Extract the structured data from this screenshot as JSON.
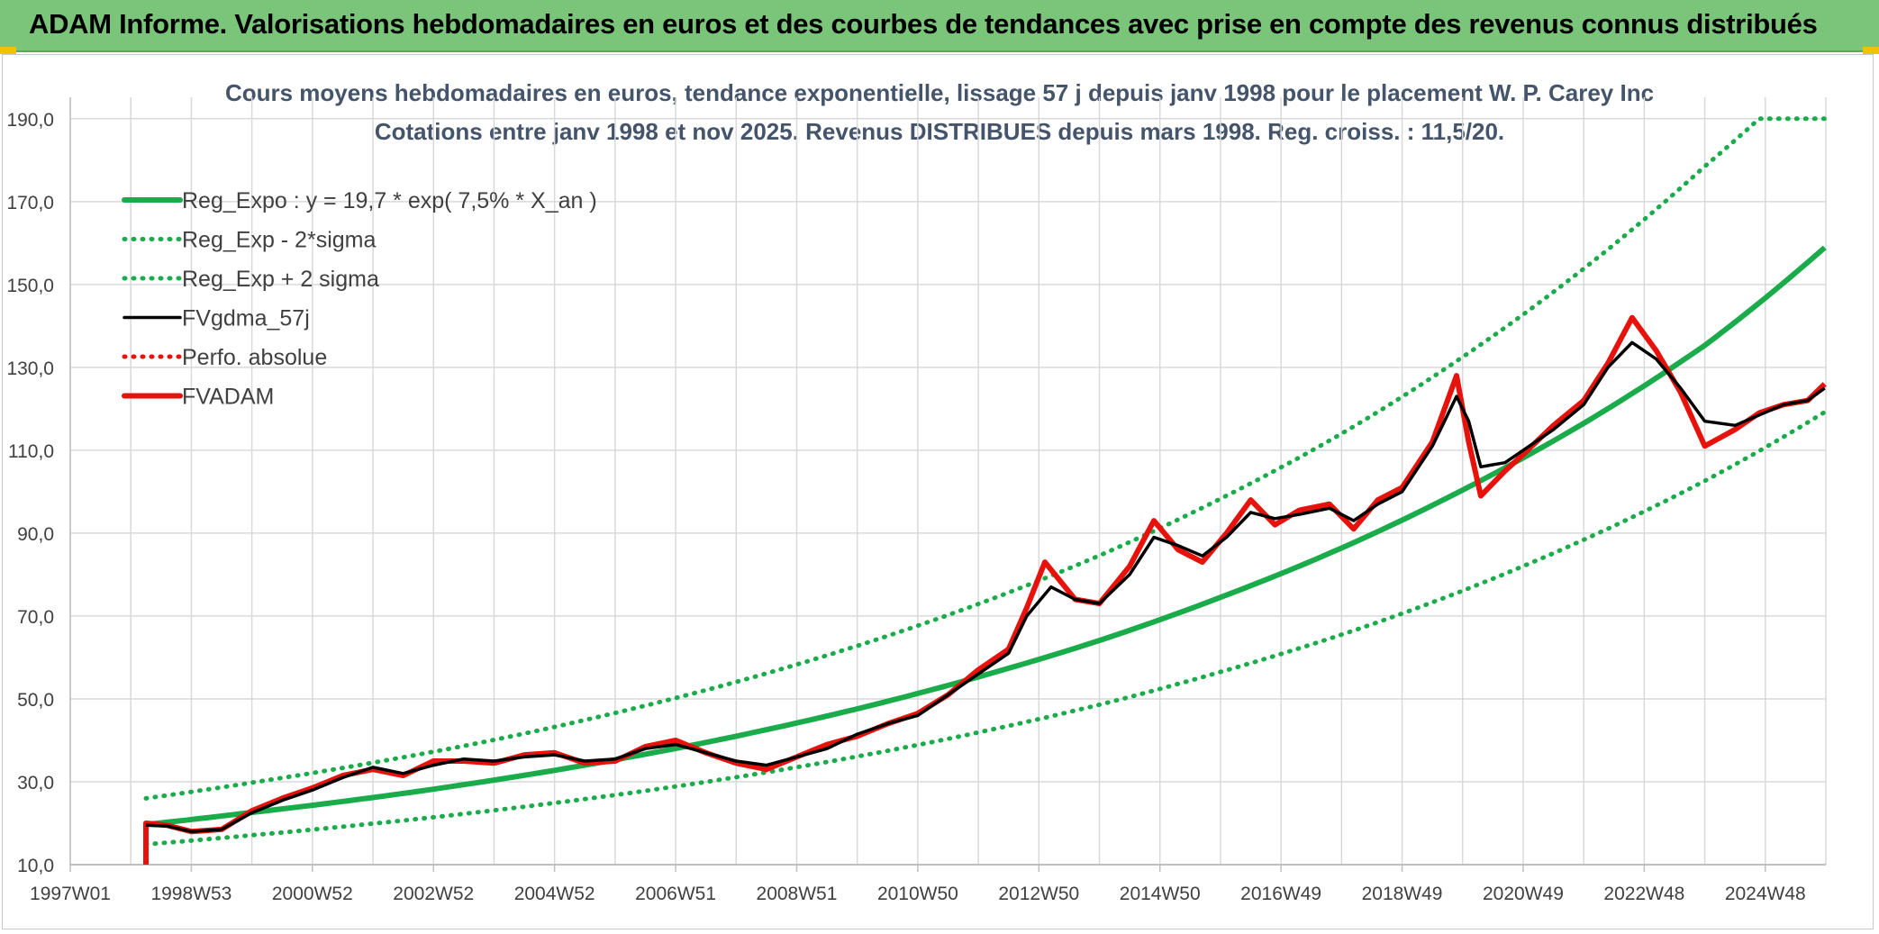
{
  "header": {
    "title": "ADAM Informe. Valorisations hebdomadaires en euros et des courbes de tendances avec prise en compte des revenus connus distribués"
  },
  "colors": {
    "header_bg": "#7ac57a",
    "regression": "#1aab4a",
    "price": "#e8120c",
    "smooth": "#000000",
    "grid": "#d9d9d9",
    "text": "#404040"
  },
  "chart_data": {
    "type": "line",
    "title": "Cours moyens hebdomadaires en euros, tendance exponentielle, lissage 57 j depuis janv 1998 pour le placement W. P. Carey Inc",
    "subtitle": "Cotations entre janv 1998 et nov 2025. Revenus DISTRIBUES depuis mars 1998. Reg. croiss. : 11,5/20.",
    "x_tick_labels": [
      "1997W01",
      "1998W53",
      "2000W52",
      "2002W52",
      "2004W52",
      "2006W51",
      "2008W51",
      "2010W50",
      "2012W50",
      "2014W50",
      "2016W49",
      "2018W49",
      "2020W49",
      "2022W48",
      "2024W48"
    ],
    "y_tick_labels": [
      "10,0",
      "30,0",
      "50,0",
      "70,0",
      "90,0",
      "110,0",
      "130,0",
      "150,0",
      "170,0",
      "190,0"
    ],
    "ylim": [
      10,
      193
    ],
    "xlim": [
      1997.0,
      2026.0
    ],
    "grid": true,
    "legend_placement": "top-left",
    "regression_formula": "Reg_Expo : y = 19,7 * exp( 7,5% *  X_an )",
    "series": [
      {
        "name": "Reg_Expo : y = 19,7 * exp( 7,5% *  X_an )",
        "style": "solid-thick",
        "color": "#1aab4a",
        "x": [
          1998.25,
          2000.0,
          2002.0,
          2004.0,
          2006.0,
          2008.0,
          2010.0,
          2012.0,
          2014.0,
          2016.0,
          2018.0,
          2020.0,
          2022.0,
          2024.0,
          2025.98
        ],
        "y": [
          19.7,
          22.6,
          26.2,
          30.4,
          35.3,
          41.0,
          47.6,
          55.3,
          64.1,
          74.5,
          86.4,
          100.4,
          116.5,
          135.3,
          158.9
        ]
      },
      {
        "name": "Reg_Exp - 2*sigma",
        "style": "dotted",
        "color": "#1aab4a",
        "x": [
          1998.25,
          2000.0,
          2002.0,
          2004.0,
          2006.0,
          2008.0,
          2010.0,
          2012.0,
          2014.0,
          2016.0,
          2018.0,
          2020.0,
          2022.0,
          2024.0,
          2025.98
        ],
        "y": [
          14.9,
          17.1,
          19.9,
          23.1,
          26.8,
          31.1,
          36.1,
          41.9,
          48.6,
          56.5,
          65.5,
          76.1,
          88.4,
          102.6,
          119.2
        ]
      },
      {
        "name": "Reg_Exp + 2 sigma",
        "style": "dotted",
        "color": "#1aab4a",
        "x": [
          1998.25,
          2000.0,
          2002.0,
          2004.0,
          2006.0,
          2008.0,
          2010.0,
          2012.0,
          2014.0,
          2016.0,
          2018.0,
          2020.0,
          2022.0,
          2024.0,
          2024.9,
          2025.98
        ],
        "y": [
          26.0,
          29.8,
          34.6,
          40.1,
          46.6,
          54.1,
          62.8,
          72.9,
          84.6,
          98.3,
          114.0,
          132.5,
          153.8,
          178.5,
          190.0,
          190.0
        ]
      },
      {
        "name": "FVgdma_57j",
        "style": "solid",
        "color": "#000000",
        "x": [
          1998.25,
          1998.6,
          1999.0,
          1999.5,
          2000.0,
          2000.5,
          2001.0,
          2001.5,
          2002.0,
          2002.5,
          2003.0,
          2003.5,
          2004.0,
          2004.5,
          2005.0,
          2005.5,
          2006.0,
          2006.5,
          2007.0,
          2007.5,
          2008.0,
          2008.5,
          2009.0,
          2009.5,
          2010.0,
          2010.5,
          2011.0,
          2011.5,
          2012.0,
          2012.5,
          2012.8,
          2013.2,
          2013.6,
          2014.0,
          2014.5,
          2014.9,
          2015.3,
          2015.7,
          2016.1,
          2016.5,
          2016.9,
          2017.3,
          2017.8,
          2018.2,
          2018.6,
          2019.0,
          2019.5,
          2019.9,
          2020.1,
          2020.3,
          2020.7,
          2021.0,
          2021.5,
          2022.0,
          2022.4,
          2022.8,
          2023.2,
          2023.6,
          2024.0,
          2024.5,
          2024.9,
          2025.3,
          2025.7,
          2025.98
        ],
        "y": [
          19.5,
          19.3,
          18.0,
          18.5,
          22.5,
          25.5,
          28.0,
          31.0,
          33.5,
          32.0,
          34.0,
          35.5,
          35.0,
          36.0,
          36.5,
          35.0,
          35.5,
          38.0,
          39.0,
          37.0,
          35.0,
          34.0,
          36.0,
          38.0,
          41.5,
          44.0,
          46.0,
          51.0,
          56.0,
          61.0,
          70.0,
          77.0,
          74.0,
          73.0,
          80.0,
          89.0,
          87.0,
          84.5,
          89.0,
          95.0,
          93.5,
          94.5,
          96.0,
          93.0,
          97.0,
          100.0,
          111.0,
          123.0,
          117.0,
          106.0,
          107.0,
          110.0,
          115.0,
          121.0,
          130.0,
          136.0,
          132.0,
          125.0,
          117.0,
          116.0,
          118.5,
          121.0,
          122.0,
          125.0
        ]
      },
      {
        "name": "Perfo. absolue",
        "style": "dotted",
        "color": "#e8120c",
        "x": [],
        "y": []
      },
      {
        "name": "FVADAM",
        "style": "solid-thick",
        "color": "#e8120c",
        "x": [
          1998.25,
          1998.25,
          1998.6,
          1999.0,
          1999.5,
          2000.0,
          2000.5,
          2001.0,
          2001.5,
          2002.0,
          2002.5,
          2003.0,
          2003.5,
          2004.0,
          2004.5,
          2005.0,
          2005.5,
          2006.0,
          2006.5,
          2007.0,
          2007.5,
          2008.0,
          2008.5,
          2009.0,
          2009.5,
          2010.0,
          2010.5,
          2011.0,
          2011.5,
          2012.0,
          2012.5,
          2012.8,
          2013.1,
          2013.6,
          2014.0,
          2014.5,
          2014.9,
          2015.3,
          2015.7,
          2016.1,
          2016.5,
          2016.9,
          2017.3,
          2017.8,
          2018.2,
          2018.6,
          2019.0,
          2019.5,
          2019.9,
          2020.1,
          2020.3,
          2020.7,
          2021.0,
          2021.5,
          2022.0,
          2022.4,
          2022.8,
          2023.2,
          2023.6,
          2024.0,
          2024.5,
          2024.9,
          2025.3,
          2025.7,
          2025.98
        ],
        "y": [
          10.0,
          20.0,
          19.5,
          18.0,
          18.5,
          23.0,
          26.0,
          28.5,
          31.5,
          33.0,
          31.5,
          35.0,
          35.0,
          34.5,
          36.5,
          37.0,
          34.5,
          35.0,
          38.5,
          40.0,
          37.0,
          34.5,
          33.0,
          36.0,
          39.0,
          41.0,
          44.0,
          46.5,
          51.0,
          57.0,
          62.0,
          72.0,
          83.0,
          74.0,
          73.0,
          82.0,
          93.0,
          86.0,
          83.0,
          90.0,
          98.0,
          92.0,
          95.5,
          97.0,
          91.0,
          98.0,
          101.0,
          112.0,
          128.0,
          112.0,
          99.0,
          105.0,
          109.0,
          116.0,
          122.0,
          131.0,
          142.0,
          134.0,
          124.0,
          111.0,
          115.0,
          119.0,
          121.0,
          122.0,
          126.0
        ]
      }
    ]
  }
}
